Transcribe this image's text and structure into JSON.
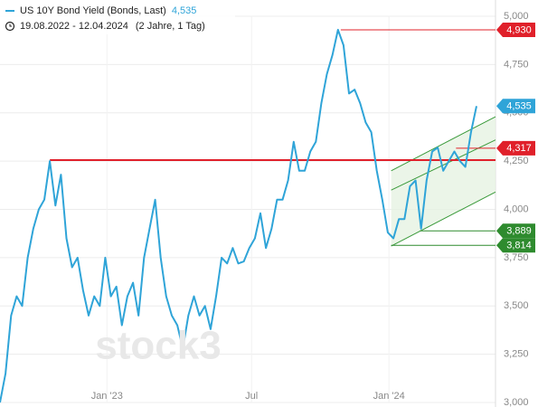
{
  "chart_data": {
    "type": "line",
    "title": "US 10Y Bond Yield (Bonds, Last)",
    "date_range": "19.08.2022 - 12.04.2024",
    "period": "(2 Jahre, 1 Tag)",
    "watermark": "stock3",
    "series": [
      {
        "name": "US 10Y Bond Yield",
        "color": "#2fa4d8",
        "values": [
          3.0,
          3.15,
          3.45,
          3.55,
          3.5,
          3.75,
          3.9,
          4.0,
          4.05,
          4.25,
          4.02,
          4.18,
          3.85,
          3.7,
          3.75,
          3.58,
          3.45,
          3.55,
          3.5,
          3.75,
          3.55,
          3.6,
          3.4,
          3.55,
          3.62,
          3.45,
          3.75,
          3.9,
          4.05,
          3.75,
          3.55,
          3.45,
          3.4,
          3.28,
          3.45,
          3.55,
          3.45,
          3.5,
          3.38,
          3.55,
          3.75,
          3.72,
          3.8,
          3.72,
          3.73,
          3.8,
          3.85,
          3.98,
          3.8,
          3.9,
          4.05,
          4.05,
          4.15,
          4.35,
          4.2,
          4.2,
          4.3,
          4.35,
          4.55,
          4.7,
          4.8,
          4.93,
          4.85,
          4.6,
          4.62,
          4.55,
          4.45,
          4.4,
          4.2,
          4.05,
          3.88,
          3.85,
          3.95,
          3.95,
          4.12,
          4.15,
          3.9,
          4.15,
          4.3,
          4.32,
          4.2,
          4.25,
          4.3,
          4.25,
          4.22,
          4.4,
          4.535
        ]
      }
    ],
    "xlim": [
      0,
      89.43
    ],
    "xticks": [
      {
        "value": 19.3,
        "label": "Jan '23"
      },
      {
        "value": 45.4,
        "label": "Jul"
      },
      {
        "value": 70.2,
        "label": "Jan '24"
      }
    ],
    "ylim": [
      3,
      5
    ],
    "yticks": [
      {
        "value": 3,
        "label": "3,000"
      },
      {
        "value": 3.25,
        "label": "3,250"
      },
      {
        "value": 3.5,
        "label": "3,500"
      },
      {
        "value": 3.75,
        "label": "3,750"
      },
      {
        "value": 4,
        "label": "4,000"
      },
      {
        "value": 4.25,
        "label": "4,250"
      },
      {
        "value": 4.5,
        "label": "4,500"
      },
      {
        "value": 4.75,
        "label": "4,750"
      },
      {
        "value": 5,
        "label": "5,000"
      }
    ],
    "grid": true,
    "levels": [
      {
        "value": 4.255,
        "x0": 9,
        "color": "#e0202a",
        "width": 2
      },
      {
        "value": 4.93,
        "x0": 61.5,
        "color": "#e0202a",
        "width": 1
      },
      {
        "value": 4.317,
        "x0": 82.3,
        "color": "#e0202a",
        "width": 1
      },
      {
        "value": 3.889,
        "x0": 75.8,
        "color": "#2e8b2e",
        "width": 1
      },
      {
        "value": 3.814,
        "x0": 70.6,
        "color": "#2e8b2e",
        "width": 1
      }
    ],
    "channel": {
      "color": "#3a9a3a",
      "fill": "#e6f3e2",
      "x": [
        70.6,
        89.43
      ],
      "upper": [
        4.2,
        4.48
      ],
      "middle": [
        4.1,
        4.36
      ],
      "lower": [
        3.81,
        4.09
      ]
    },
    "price_labels": [
      {
        "value": 4.93,
        "label": "4,930",
        "color": "#e0202a"
      },
      {
        "value": 4.535,
        "label": "4,535",
        "color": "#2fa4d8"
      },
      {
        "value": 4.317,
        "label": "4,317",
        "color": "#e0202a"
      },
      {
        "value": 3.889,
        "label": "3,889",
        "color": "#2e8b2e"
      },
      {
        "value": 3.814,
        "label": "3,814",
        "color": "#2e8b2e"
      }
    ]
  }
}
